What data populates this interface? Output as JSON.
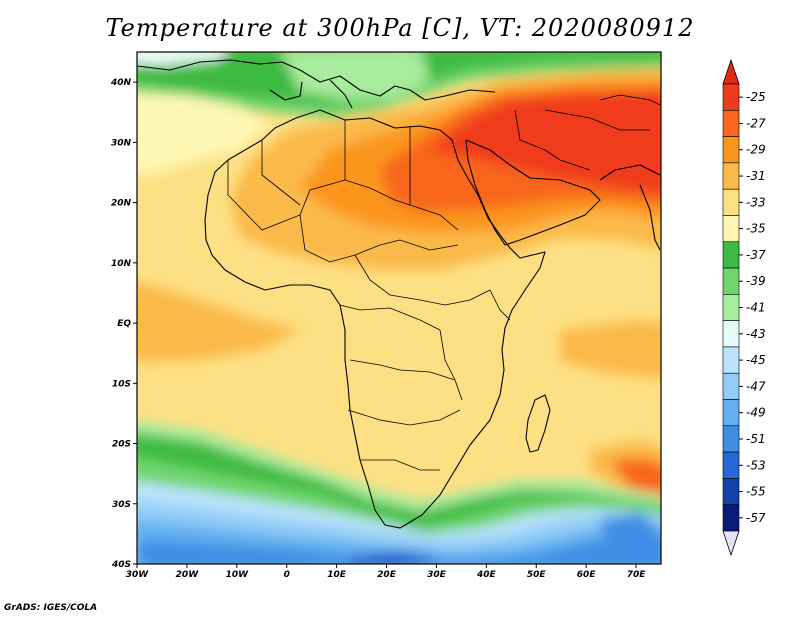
{
  "title": "Temperature at 300hPa [C], VT: 2020080912",
  "credit": "GrADS: IGES/COLA",
  "map": {
    "lon_range": [
      -30,
      75
    ],
    "lat_range": [
      -40,
      45
    ],
    "lon_ticks": [
      {
        "value": -30,
        "label": "30W"
      },
      {
        "value": -20,
        "label": "20W"
      },
      {
        "value": -10,
        "label": "10W"
      },
      {
        "value": 0,
        "label": "0"
      },
      {
        "value": 10,
        "label": "10E"
      },
      {
        "value": 20,
        "label": "20E"
      },
      {
        "value": 30,
        "label": "30E"
      },
      {
        "value": 40,
        "label": "40E"
      },
      {
        "value": 50,
        "label": "50E"
      },
      {
        "value": 60,
        "label": "60E"
      },
      {
        "value": 70,
        "label": "70E"
      }
    ],
    "lat_ticks": [
      {
        "value": 40,
        "label": "40N"
      },
      {
        "value": 30,
        "label": "30N"
      },
      {
        "value": 20,
        "label": "20N"
      },
      {
        "value": 10,
        "label": "10N"
      },
      {
        "value": 0,
        "label": "EQ"
      },
      {
        "value": -10,
        "label": "10S"
      },
      {
        "value": -20,
        "label": "20S"
      },
      {
        "value": -30,
        "label": "30S"
      },
      {
        "value": -40,
        "label": "40S"
      }
    ]
  },
  "colorbar": {
    "labels": [
      "-25",
      "-27",
      "-29",
      "-31",
      "-33",
      "-35",
      "-37",
      "-39",
      "-41",
      "-43",
      "-45",
      "-47",
      "-49",
      "-51",
      "-53",
      "-55",
      "-57"
    ],
    "colors": [
      "#f03a1d",
      "#f8661f",
      "#fb951c",
      "#fbb94a",
      "#fde084",
      "#fef7b4",
      "#3dba41",
      "#6fd66d",
      "#a8ec9d",
      "#e6fbf8",
      "#bbe3fb",
      "#92cdf7",
      "#64b0f0",
      "#3e8ee4",
      "#2567d4",
      "#1441a9",
      "#0a1c7a"
    ],
    "top_arrow_color": "#e02a12",
    "bottom_arrow_color": "#e6e2fb"
  }
}
